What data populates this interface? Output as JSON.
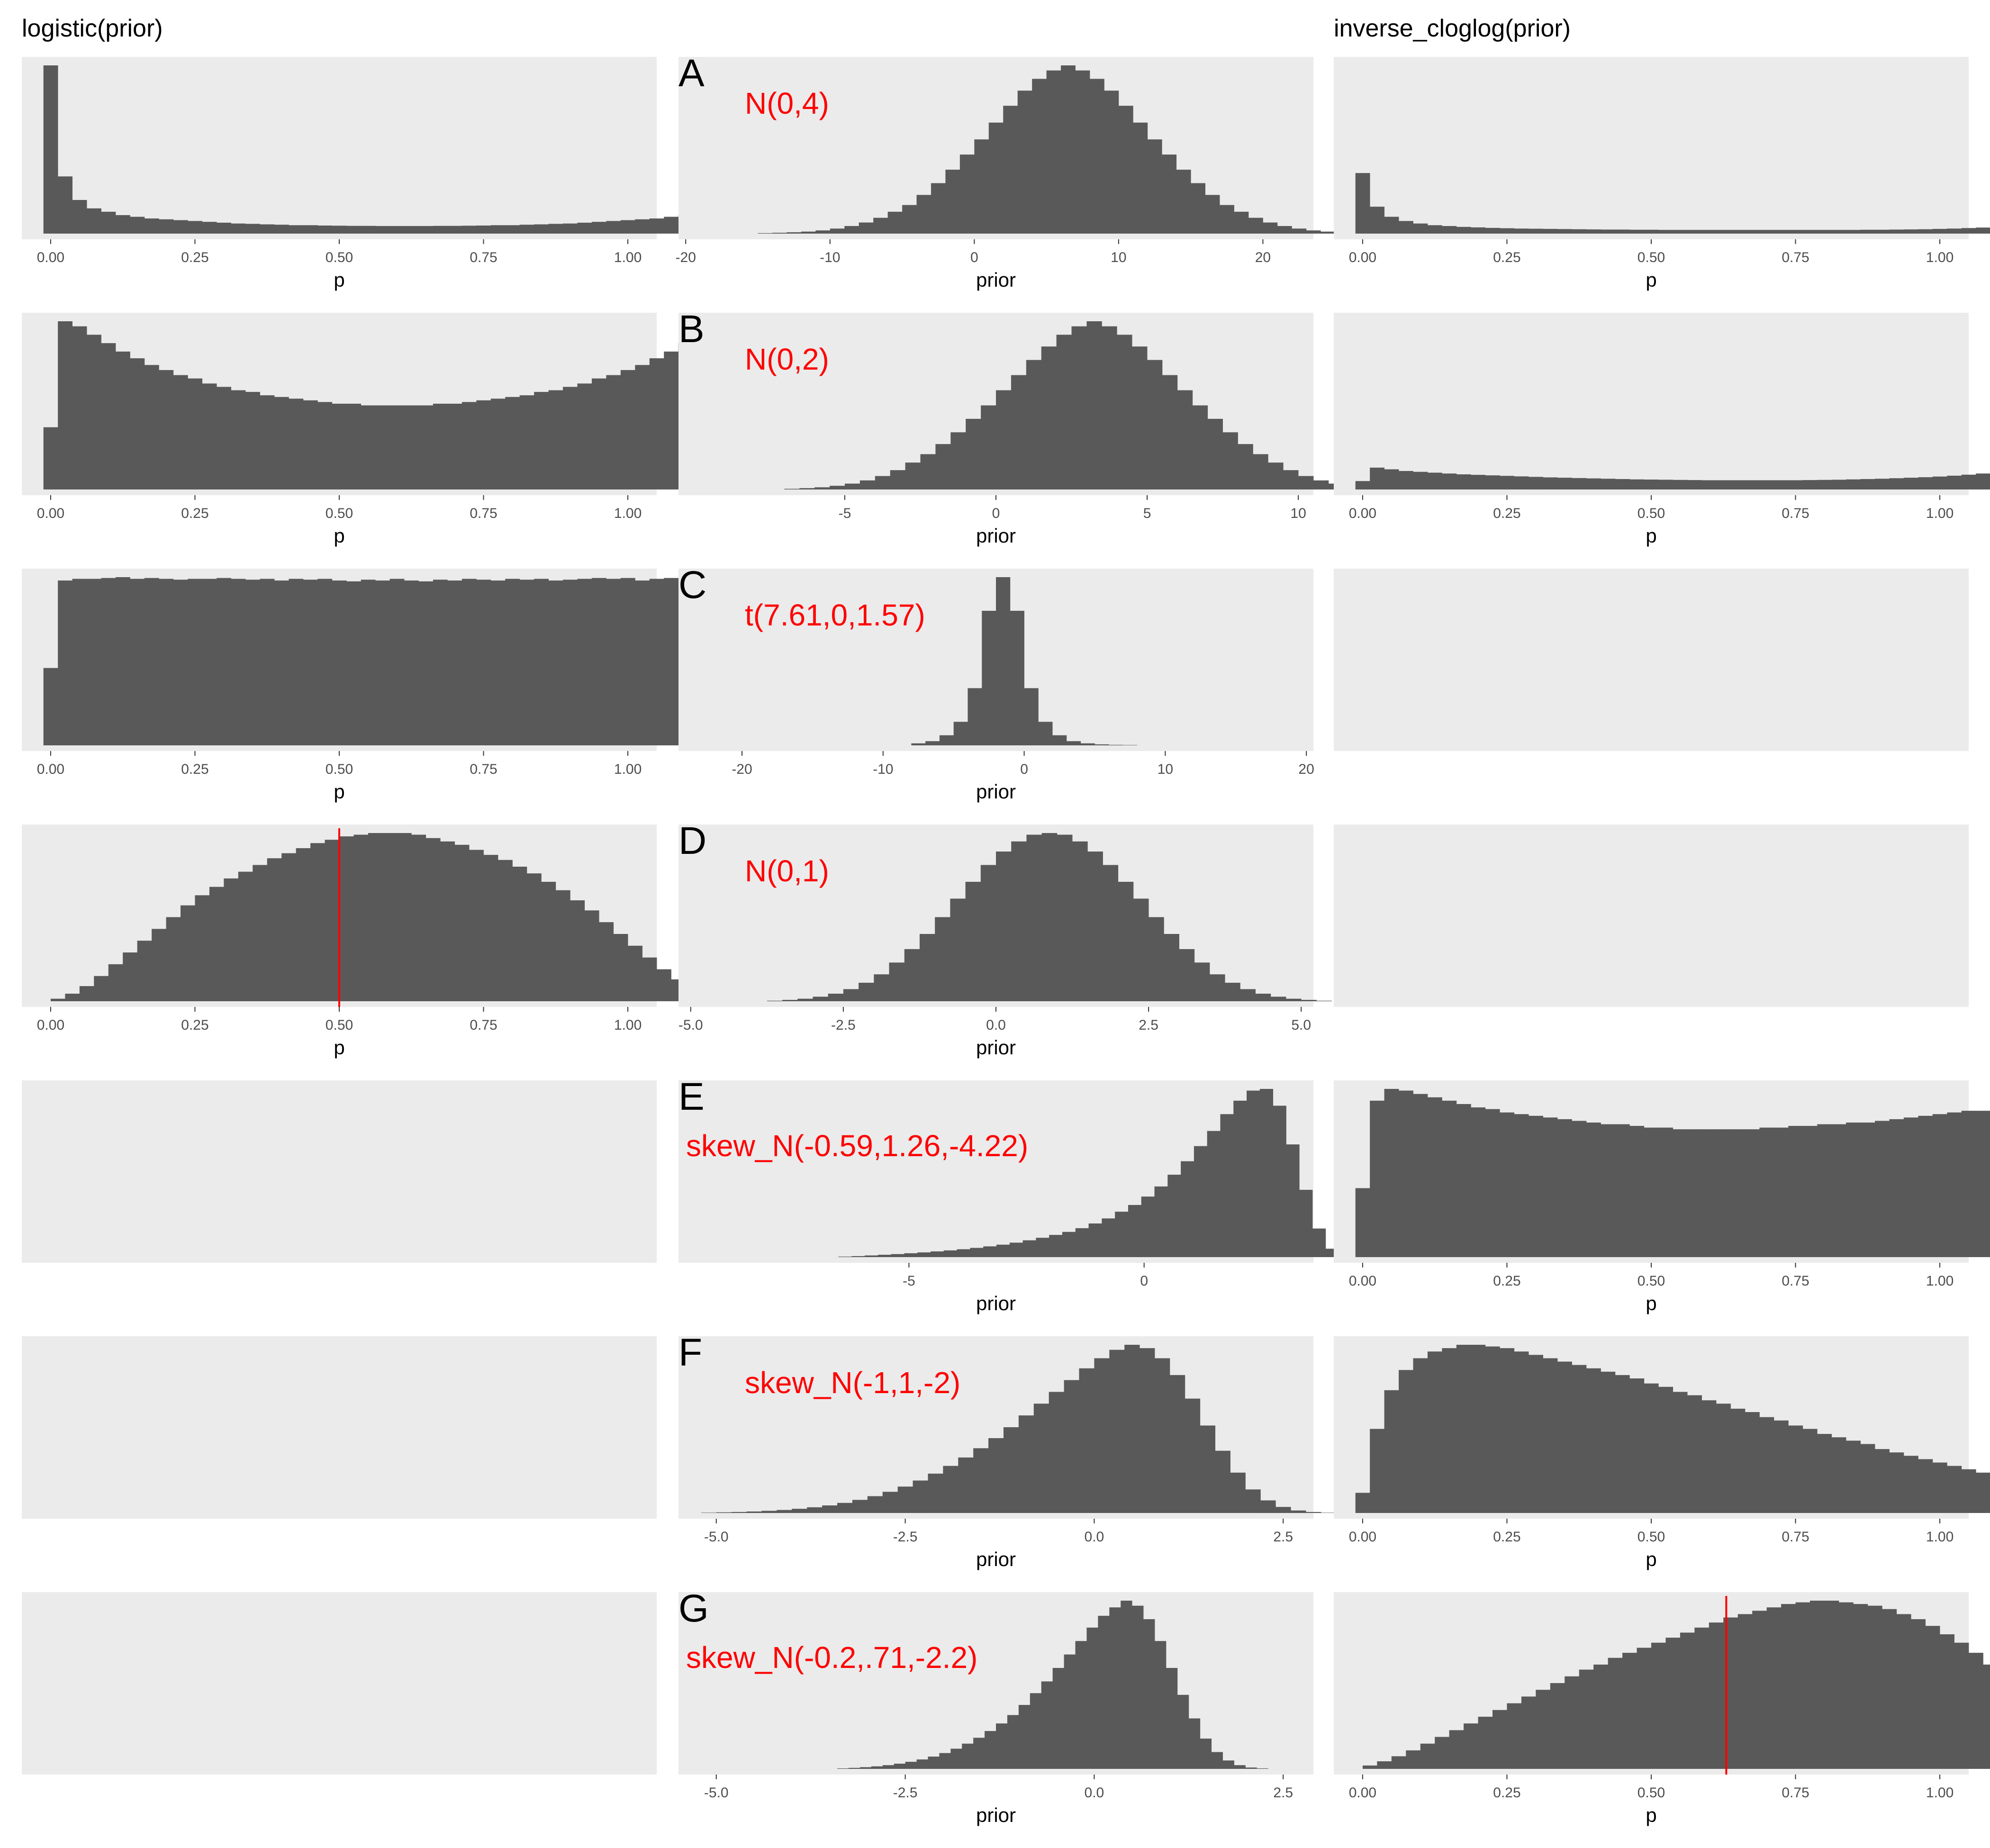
{
  "figure": {
    "left_title": "logistic(prior)",
    "right_title": "inverse_cloglog(prior)"
  },
  "chart_data": [
    {
      "id": "A-logistic",
      "type": "bar",
      "row": 0,
      "col": 0,
      "xlabel": "p",
      "xlim": [
        -0.05,
        1.05
      ],
      "xticks": [
        "0.00",
        "0.25",
        "0.50",
        "0.75",
        "1.00"
      ],
      "xtick_values": [
        0,
        0.25,
        0.5,
        0.75,
        1
      ],
      "bin_start": -0.0125,
      "bin_width": 0.025,
      "values": [
        1.0,
        0.34,
        0.2,
        0.15,
        0.13,
        0.11,
        0.1,
        0.09,
        0.085,
        0.08,
        0.075,
        0.07,
        0.065,
        0.06,
        0.058,
        0.055,
        0.053,
        0.05,
        0.05,
        0.048,
        0.047,
        0.046,
        0.046,
        0.045,
        0.045,
        0.045,
        0.045,
        0.046,
        0.046,
        0.047,
        0.048,
        0.05,
        0.05,
        0.053,
        0.055,
        0.058,
        0.06,
        0.065,
        0.07,
        0.075,
        0.08,
        0.085,
        0.09,
        0.1,
        0.11,
        0.13,
        0.15,
        0.2,
        0.45,
        1.0
      ]
    },
    {
      "id": "A-prior",
      "type": "bar",
      "row": 0,
      "col": 1,
      "letter": "A",
      "annotation": "N(0,4)",
      "xlabel": "prior",
      "xlim": [
        -20.5,
        23.5
      ],
      "xticks": [
        "-20",
        "-10",
        "0",
        "10",
        "20"
      ],
      "xtick_values": [
        -20,
        -10,
        0,
        10,
        20
      ],
      "bin_start": -15,
      "bin_width": 1,
      "values": [
        0.003,
        0.005,
        0.008,
        0.012,
        0.019,
        0.03,
        0.045,
        0.066,
        0.094,
        0.13,
        0.17,
        0.23,
        0.3,
        0.38,
        0.47,
        0.56,
        0.66,
        0.76,
        0.85,
        0.92,
        0.97,
        1.0,
        0.97,
        0.92,
        0.85,
        0.76,
        0.66,
        0.56,
        0.47,
        0.38,
        0.3,
        0.23,
        0.17,
        0.13,
        0.094,
        0.066,
        0.045,
        0.03,
        0.019,
        0.012
      ]
    },
    {
      "id": "A-cloglog",
      "type": "bar",
      "row": 0,
      "col": 2,
      "xlabel": "p",
      "xlim": [
        -0.05,
        1.05
      ],
      "xticks": [
        "0.00",
        "0.25",
        "0.50",
        "0.75",
        "1.00"
      ],
      "xtick_values": [
        0,
        0.25,
        0.5,
        0.75,
        1
      ],
      "bin_start": -0.0125,
      "bin_width": 0.025,
      "values": [
        0.36,
        0.16,
        0.1,
        0.075,
        0.06,
        0.05,
        0.045,
        0.04,
        0.037,
        0.034,
        0.032,
        0.03,
        0.029,
        0.028,
        0.027,
        0.026,
        0.025,
        0.024,
        0.024,
        0.023,
        0.023,
        0.022,
        0.022,
        0.022,
        0.022,
        0.022,
        0.022,
        0.022,
        0.022,
        0.022,
        0.022,
        0.022,
        0.022,
        0.022,
        0.022,
        0.023,
        0.023,
        0.024,
        0.025,
        0.026,
        0.028,
        0.03,
        0.033,
        0.036,
        0.04,
        0.045,
        0.055,
        0.07,
        0.1,
        1.0
      ]
    },
    {
      "id": "B-logistic",
      "type": "bar",
      "row": 1,
      "col": 0,
      "xlabel": "p",
      "xlim": [
        -0.05,
        1.05
      ],
      "xticks": [
        "0.00",
        "0.25",
        "0.50",
        "0.75",
        "1.00"
      ],
      "xtick_values": [
        0,
        0.25,
        0.5,
        0.75,
        1
      ],
      "bin_start": -0.0125,
      "bin_width": 0.025,
      "values": [
        0.37,
        1.0,
        0.97,
        0.92,
        0.87,
        0.82,
        0.78,
        0.74,
        0.71,
        0.68,
        0.66,
        0.63,
        0.61,
        0.59,
        0.58,
        0.56,
        0.55,
        0.54,
        0.53,
        0.52,
        0.51,
        0.51,
        0.5,
        0.5,
        0.5,
        0.5,
        0.5,
        0.51,
        0.51,
        0.52,
        0.53,
        0.54,
        0.55,
        0.56,
        0.58,
        0.59,
        0.61,
        0.63,
        0.66,
        0.68,
        0.71,
        0.74,
        0.78,
        0.82,
        0.87,
        0.92,
        0.97,
        1.0,
        1.0,
        0.37
      ]
    },
    {
      "id": "B-prior",
      "type": "bar",
      "row": 1,
      "col": 1,
      "letter": "B",
      "annotation": "N(0,2)",
      "xlabel": "prior",
      "xlim": [
        -10.5,
        10.5
      ],
      "xticks": [
        "-5",
        "0",
        "5",
        "10"
      ],
      "xtick_values": [
        -5,
        0,
        5,
        10
      ],
      "bin_start": -7,
      "bin_width": 0.5,
      "values": [
        0.004,
        0.008,
        0.013,
        0.022,
        0.035,
        0.054,
        0.08,
        0.115,
        0.16,
        0.21,
        0.27,
        0.34,
        0.42,
        0.5,
        0.59,
        0.68,
        0.77,
        0.85,
        0.92,
        0.97,
        1.0,
        0.97,
        0.92,
        0.85,
        0.77,
        0.68,
        0.59,
        0.5,
        0.42,
        0.34,
        0.27,
        0.21,
        0.16,
        0.115,
        0.08,
        0.054,
        0.035,
        0.022,
        0.013,
        0.008
      ]
    },
    {
      "id": "B-cloglog",
      "type": "bar",
      "row": 1,
      "col": 2,
      "xlabel": "p",
      "xlim": [
        -0.05,
        1.05
      ],
      "xticks": [
        "0.00",
        "0.25",
        "0.50",
        "0.75",
        "1.00"
      ],
      "xtick_values": [
        0,
        0.25,
        0.5,
        0.75,
        1
      ],
      "bin_start": -0.0125,
      "bin_width": 0.025,
      "values": [
        0.05,
        0.13,
        0.12,
        0.11,
        0.105,
        0.1,
        0.095,
        0.09,
        0.087,
        0.084,
        0.081,
        0.078,
        0.075,
        0.072,
        0.07,
        0.068,
        0.066,
        0.064,
        0.062,
        0.06,
        0.059,
        0.058,
        0.057,
        0.056,
        0.055,
        0.055,
        0.055,
        0.055,
        0.055,
        0.055,
        0.055,
        0.056,
        0.057,
        0.058,
        0.06,
        0.062,
        0.064,
        0.067,
        0.07,
        0.073,
        0.077,
        0.082,
        0.088,
        0.095,
        0.105,
        0.12,
        0.14,
        0.17,
        0.23,
        1.0
      ]
    },
    {
      "id": "C-logistic",
      "type": "bar",
      "row": 2,
      "col": 0,
      "xlabel": "p",
      "xlim": [
        -0.05,
        1.05
      ],
      "xticks": [
        "0.00",
        "0.25",
        "0.50",
        "0.75",
        "1.00"
      ],
      "xtick_values": [
        0,
        0.25,
        0.5,
        0.75,
        1
      ],
      "bin_start": -0.0125,
      "bin_width": 0.025,
      "values": [
        0.46,
        0.98,
        0.99,
        0.99,
        0.995,
        1.0,
        0.99,
        0.995,
        0.99,
        0.985,
        0.99,
        0.99,
        0.995,
        0.99,
        0.985,
        0.99,
        0.98,
        0.99,
        0.985,
        0.99,
        0.98,
        0.975,
        0.985,
        0.98,
        0.99,
        0.98,
        0.975,
        0.985,
        0.98,
        0.99,
        0.985,
        0.98,
        0.99,
        0.985,
        0.99,
        0.98,
        0.985,
        0.99,
        0.995,
        0.99,
        0.995,
        0.98,
        0.99,
        0.995,
        0.99,
        0.985,
        0.99,
        0.98,
        0.97,
        0.46
      ]
    },
    {
      "id": "C-prior",
      "type": "bar",
      "row": 2,
      "col": 1,
      "letter": "C",
      "annotation": "t(7.61,0,1.57)",
      "xlabel": "prior",
      "xlim": [
        -24.5,
        20.5
      ],
      "xticks": [
        "-20",
        "-10",
        "0",
        "10",
        "20"
      ],
      "xtick_values": [
        -20,
        -10,
        0,
        10,
        20
      ],
      "bin_start": -8,
      "bin_width": 1,
      "values": [
        0.012,
        0.025,
        0.06,
        0.14,
        0.34,
        0.8,
        1.0,
        0.8,
        0.34,
        0.14,
        0.06,
        0.025,
        0.012,
        0.006,
        0.003,
        0.002
      ]
    },
    {
      "id": "C-cloglog",
      "type": "empty",
      "row": 2,
      "col": 2
    },
    {
      "id": "D-logistic",
      "type": "bar",
      "row": 3,
      "col": 0,
      "xlabel": "p",
      "xlim": [
        -0.05,
        1.05
      ],
      "xticks": [
        "0.00",
        "0.25",
        "0.50",
        "0.75",
        "1.00"
      ],
      "xtick_values": [
        0,
        0.25,
        0.5,
        0.75,
        1
      ],
      "bin_start": 0.0,
      "bin_width": 0.025,
      "vline": 0.5,
      "values": [
        0.015,
        0.045,
        0.09,
        0.15,
        0.22,
        0.29,
        0.36,
        0.43,
        0.5,
        0.57,
        0.63,
        0.68,
        0.73,
        0.77,
        0.81,
        0.85,
        0.88,
        0.91,
        0.94,
        0.96,
        0.98,
        0.99,
        1.0,
        1.0,
        1.0,
        0.99,
        0.97,
        0.95,
        0.93,
        0.9,
        0.87,
        0.84,
        0.8,
        0.76,
        0.71,
        0.66,
        0.6,
        0.54,
        0.47,
        0.4,
        0.33,
        0.26,
        0.19,
        0.13,
        0.07,
        0.03
      ]
    },
    {
      "id": "D-prior",
      "type": "bar",
      "row": 3,
      "col": 1,
      "letter": "D",
      "annotation": "N(0,1)",
      "xlabel": "prior",
      "xlim": [
        -5.2,
        5.2
      ],
      "xticks": [
        "-5.0",
        "-2.5",
        "0.0",
        "2.5",
        "5.0"
      ],
      "xtick_values": [
        -5,
        -2.5,
        0,
        2.5,
        5
      ],
      "bin_start": -3.75,
      "bin_width": 0.25,
      "values": [
        0.003,
        0.008,
        0.015,
        0.027,
        0.045,
        0.072,
        0.11,
        0.16,
        0.23,
        0.31,
        0.4,
        0.5,
        0.61,
        0.71,
        0.81,
        0.89,
        0.95,
        0.99,
        1.0,
        0.99,
        0.95,
        0.89,
        0.81,
        0.71,
        0.61,
        0.5,
        0.4,
        0.31,
        0.23,
        0.16,
        0.11,
        0.072,
        0.045,
        0.027,
        0.015,
        0.008,
        0.003
      ]
    },
    {
      "id": "D-cloglog",
      "type": "empty",
      "row": 3,
      "col": 2
    },
    {
      "id": "E-logistic",
      "type": "empty",
      "row": 4,
      "col": 0
    },
    {
      "id": "E-prior",
      "type": "bar",
      "row": 4,
      "col": 1,
      "letter": "E",
      "annotation": "skew_N(-0.59,1.26,-4.22)",
      "xlabel": "prior",
      "xlim": [
        -9.9,
        3.6
      ],
      "xticks": [
        "-5",
        "0"
      ],
      "xtick_values": [
        -5,
        0
      ],
      "bin_start": -6.5,
      "bin_width": 0.28,
      "values": [
        0.003,
        0.006,
        0.01,
        0.014,
        0.018,
        0.023,
        0.028,
        0.034,
        0.04,
        0.047,
        0.055,
        0.064,
        0.074,
        0.086,
        0.1,
        0.115,
        0.132,
        0.15,
        0.172,
        0.2,
        0.23,
        0.27,
        0.31,
        0.36,
        0.42,
        0.49,
        0.57,
        0.66,
        0.75,
        0.85,
        0.93,
        0.99,
        1.0,
        0.9,
        0.67,
        0.4,
        0.17,
        0.05,
        0.01
      ]
    },
    {
      "id": "E-cloglog",
      "type": "bar",
      "row": 4,
      "col": 2,
      "xlabel": "p",
      "xlim": [
        -0.05,
        1.05
      ],
      "xticks": [
        "0.00",
        "0.25",
        "0.50",
        "0.75",
        "1.00"
      ],
      "xtick_values": [
        0,
        0.25,
        0.5,
        0.75,
        1
      ],
      "bin_start": -0.0125,
      "bin_width": 0.025,
      "values": [
        0.41,
        0.93,
        1.0,
        0.99,
        0.97,
        0.95,
        0.93,
        0.91,
        0.89,
        0.88,
        0.86,
        0.85,
        0.84,
        0.83,
        0.82,
        0.81,
        0.8,
        0.79,
        0.79,
        0.78,
        0.77,
        0.77,
        0.76,
        0.76,
        0.76,
        0.76,
        0.76,
        0.76,
        0.77,
        0.77,
        0.78,
        0.78,
        0.79,
        0.79,
        0.8,
        0.8,
        0.81,
        0.82,
        0.83,
        0.84,
        0.85,
        0.86,
        0.87,
        0.87,
        0.88,
        0.88,
        0.87,
        0.86,
        0.84,
        0.41
      ]
    },
    {
      "id": "F-logistic",
      "type": "empty",
      "row": 5,
      "col": 0
    },
    {
      "id": "F-prior",
      "type": "bar",
      "row": 5,
      "col": 1,
      "letter": "F",
      "annotation": "skew_N(-1,1,-2)",
      "xlabel": "prior",
      "xlim": [
        -5.5,
        2.9
      ],
      "xticks": [
        "-5.0",
        "-2.5",
        "0.0",
        "2.5"
      ],
      "xtick_values": [
        -5,
        -2.5,
        0,
        2.5
      ],
      "bin_start": -5.2,
      "bin_width": 0.2,
      "values": [
        0.002,
        0.004,
        0.006,
        0.009,
        0.013,
        0.018,
        0.025,
        0.034,
        0.045,
        0.06,
        0.078,
        0.1,
        0.126,
        0.157,
        0.193,
        0.234,
        0.28,
        0.33,
        0.385,
        0.445,
        0.51,
        0.58,
        0.65,
        0.72,
        0.79,
        0.86,
        0.92,
        0.97,
        1.0,
        0.98,
        0.92,
        0.82,
        0.68,
        0.52,
        0.37,
        0.24,
        0.14,
        0.075,
        0.036,
        0.015,
        0.006,
        0.002
      ]
    },
    {
      "id": "F-cloglog",
      "type": "bar",
      "row": 5,
      "col": 2,
      "xlabel": "p",
      "xlim": [
        -0.05,
        1.05
      ],
      "xticks": [
        "0.00",
        "0.25",
        "0.50",
        "0.75",
        "1.00"
      ],
      "xtick_values": [
        0,
        0.25,
        0.5,
        0.75,
        1
      ],
      "bin_start": -0.0125,
      "bin_width": 0.025,
      "values": [
        0.12,
        0.5,
        0.73,
        0.85,
        0.92,
        0.96,
        0.98,
        1.0,
        1.0,
        0.99,
        0.98,
        0.96,
        0.94,
        0.92,
        0.9,
        0.88,
        0.86,
        0.84,
        0.82,
        0.8,
        0.77,
        0.75,
        0.72,
        0.7,
        0.67,
        0.65,
        0.62,
        0.6,
        0.57,
        0.55,
        0.52,
        0.5,
        0.47,
        0.45,
        0.43,
        0.41,
        0.38,
        0.36,
        0.34,
        0.32,
        0.3,
        0.28,
        0.26,
        0.24,
        0.22,
        0.2,
        0.18,
        0.16,
        0.14,
        0.12
      ]
    },
    {
      "id": "G-logistic",
      "type": "empty",
      "row": 6,
      "col": 0
    },
    {
      "id": "G-prior",
      "type": "bar",
      "row": 6,
      "col": 1,
      "letter": "G",
      "annotation": "skew_N(-0.2,.71,-2.2)",
      "xlabel": "prior",
      "xlim": [
        -5.5,
        2.9
      ],
      "xticks": [
        "-5.0",
        "-2.5",
        "0.0",
        "2.5"
      ],
      "xtick_values": [
        -5,
        -2.5,
        0,
        2.5
      ],
      "bin_start": -3.4,
      "bin_width": 0.15,
      "values": [
        0.003,
        0.006,
        0.01,
        0.015,
        0.022,
        0.031,
        0.042,
        0.056,
        0.073,
        0.094,
        0.12,
        0.15,
        0.185,
        0.225,
        0.27,
        0.32,
        0.38,
        0.45,
        0.52,
        0.6,
        0.68,
        0.76,
        0.84,
        0.91,
        0.96,
        1.0,
        0.97,
        0.89,
        0.76,
        0.6,
        0.44,
        0.3,
        0.18,
        0.1,
        0.05,
        0.022,
        0.008,
        0.003
      ]
    },
    {
      "id": "G-cloglog",
      "type": "bar",
      "row": 6,
      "col": 2,
      "xlabel": "p",
      "xlim": [
        -0.05,
        1.05
      ],
      "xticks": [
        "0.00",
        "0.25",
        "0.50",
        "0.75",
        "1.00"
      ],
      "xtick_values": [
        0,
        0.25,
        0.5,
        0.75,
        1
      ],
      "bin_start": 0.0,
      "bin_width": 0.025,
      "vline": 0.63,
      "values": [
        0.02,
        0.045,
        0.075,
        0.11,
        0.15,
        0.19,
        0.23,
        0.27,
        0.31,
        0.35,
        0.39,
        0.43,
        0.47,
        0.51,
        0.55,
        0.59,
        0.62,
        0.66,
        0.69,
        0.72,
        0.75,
        0.78,
        0.81,
        0.84,
        0.87,
        0.9,
        0.92,
        0.94,
        0.96,
        0.98,
        0.99,
        1.0,
        1.0,
        0.99,
        0.98,
        0.97,
        0.95,
        0.92,
        0.89,
        0.85,
        0.8,
        0.75,
        0.69,
        0.62,
        0.55,
        0.47,
        0.38,
        0.29,
        0.2,
        0.11
      ]
    }
  ],
  "colors": {
    "panel_bg": "#ebebeb",
    "bar": "#595959",
    "annotation": "#ff0000",
    "vline": "#ff0000",
    "tick_text": "#4d4d4d",
    "axis_title": "#000000"
  }
}
